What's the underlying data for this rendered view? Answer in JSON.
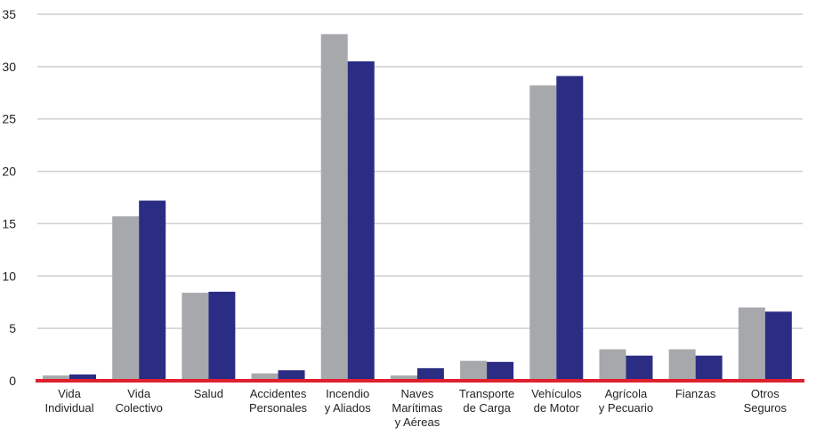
{
  "chart_data": {
    "type": "bar",
    "title": "",
    "xlabel": "",
    "ylabel": "",
    "ylim": [
      0,
      35
    ],
    "yticks": [
      0,
      5,
      10,
      15,
      20,
      25,
      30,
      35
    ],
    "grid": true,
    "legend": "none",
    "categories": [
      [
        "Vida",
        "Individual"
      ],
      [
        "Vida",
        "Colectivo"
      ],
      [
        "Salud"
      ],
      [
        "Accidentes",
        "Personales"
      ],
      [
        "Incendio",
        "y Aliados"
      ],
      [
        "Naves",
        "Marítimas",
        "y Aéreas"
      ],
      [
        "Transporte",
        "de Carga"
      ],
      [
        "Vehículos",
        "de Motor"
      ],
      [
        "Agrícola",
        "y Pecuario"
      ],
      [
        "Fianzas"
      ],
      [
        "Otros",
        "Seguros"
      ]
    ],
    "series": [
      {
        "values": [
          0.5,
          15.7,
          8.4,
          0.7,
          33.1,
          0.5,
          1.9,
          28.2,
          3.0,
          3.0,
          7.0
        ]
      },
      {
        "values": [
          0.6,
          17.2,
          8.5,
          1.0,
          30.5,
          1.2,
          1.8,
          29.1,
          2.4,
          2.4,
          6.6
        ]
      }
    ],
    "colors": {
      "series": [
        "#a6a8ab",
        "#2b2d84"
      ],
      "baseline": "#e0202e",
      "grid": "#cfcfcf"
    }
  }
}
